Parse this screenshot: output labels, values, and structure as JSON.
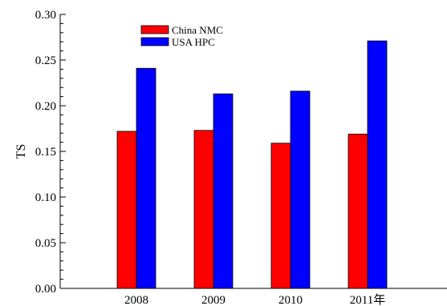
{
  "chart_data": {
    "type": "bar",
    "categories": [
      "2008",
      "2009",
      "2010",
      "2011年"
    ],
    "series": [
      {
        "name": "China NMC",
        "color": "#ff0000",
        "values": [
          0.172,
          0.173,
          0.159,
          0.169
        ]
      },
      {
        "name": "USA HPC",
        "color": "#0000ff",
        "values": [
          0.241,
          0.213,
          0.216,
          0.271
        ]
      }
    ],
    "title": "",
    "xlabel": "",
    "ylabel": "TS",
    "ylim": [
      0,
      0.3
    ],
    "yticks": [
      "0.00",
      "0.05",
      "0.10",
      "0.15",
      "0.20",
      "0.25",
      "0.30"
    ],
    "grid": false,
    "legend_position": "top-left"
  }
}
